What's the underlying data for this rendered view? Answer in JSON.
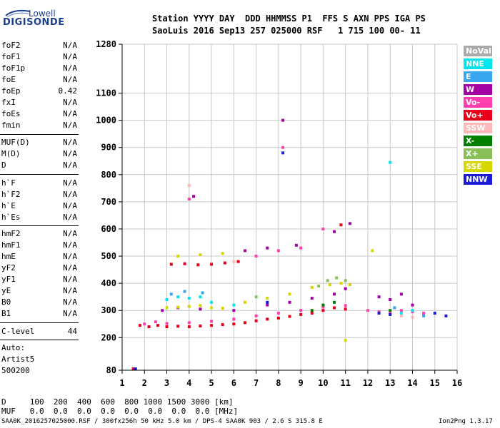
{
  "logo": {
    "top": "Lowell",
    "bottom": "DIGISONDE"
  },
  "header": {
    "line1": "Station YYYY DAY  DDD HHMMSS P1  FFS S AXN PPS IGA PS",
    "line2": "SaoLuis 2016 Sep13 257 025000 RSF   1 715 100 00- 11"
  },
  "params": [
    {
      "name": "foF2",
      "value": "N/A"
    },
    {
      "name": "foF1",
      "value": "N/A"
    },
    {
      "name": "foF1p",
      "value": "N/A"
    },
    {
      "name": "foE",
      "value": "N/A"
    },
    {
      "name": "foEp",
      "value": "0.42"
    },
    {
      "name": "fxI",
      "value": "N/A"
    },
    {
      "name": "foEs",
      "value": "N/A"
    },
    {
      "name": "fmin",
      "value": "N/A"
    },
    {
      "name": "MUF(D)",
      "value": "N/A"
    },
    {
      "name": "M(D)",
      "value": "N/A"
    },
    {
      "name": "D",
      "value": "N/A"
    },
    {
      "name": "h`F",
      "value": "N/A"
    },
    {
      "name": "h`F2",
      "value": "N/A"
    },
    {
      "name": "h`E",
      "value": "N/A"
    },
    {
      "name": "h`Es",
      "value": "N/A"
    },
    {
      "name": "hmF2",
      "value": "N/A"
    },
    {
      "name": "hmF1",
      "value": "N/A"
    },
    {
      "name": "hmE",
      "value": "N/A"
    },
    {
      "name": "yF2",
      "value": "N/A"
    },
    {
      "name": "yF1",
      "value": "N/A"
    },
    {
      "name": "yE",
      "value": "N/A"
    },
    {
      "name": "B0",
      "value": "N/A"
    },
    {
      "name": "B1",
      "value": "N/A"
    },
    {
      "name": "C-level",
      "value": "44"
    }
  ],
  "autoscaling": {
    "line1": "Auto:",
    "line2": "Artist5",
    "line3": "500200"
  },
  "legend": [
    {
      "label": "NoVal",
      "color": "#a9a9a9"
    },
    {
      "label": "NNE",
      "color": "#00e5ee"
    },
    {
      "label": "E",
      "color": "#39a6f2"
    },
    {
      "label": "W",
      "color": "#a500a5"
    },
    {
      "label": "Vo-",
      "color": "#ff3faf"
    },
    {
      "label": "Vo+",
      "color": "#e8001a"
    },
    {
      "label": "SSW",
      "color": "#ffb7b7"
    },
    {
      "label": "X-",
      "color": "#007f00"
    },
    {
      "label": "X+",
      "color": "#88c057"
    },
    {
      "label": "SSE",
      "color": "#d6d600"
    },
    {
      "label": "NNW",
      "color": "#1a1ad8"
    }
  ],
  "footer": {
    "d_row": "D     100  200  400  600  800 1000 1500 3000 [km]",
    "muf_row": "MUF   0.0  0.0  0.0  0.0  0.0  0.0  0.0  0.0 [MHz]",
    "file_info": "SAA0K_2016257025000.RSF / 300fx256h 50 kHz 5.0 km / DPS-4 SAA0K 903 / 2.6 S 315.8 E",
    "version": "Ion2Png 1.3.17"
  },
  "chart_data": {
    "type": "scatter",
    "title": "",
    "xlabel": "",
    "ylabel": "",
    "xlim": [
      1,
      16
    ],
    "ylim": [
      80,
      1280
    ],
    "x_ticks": [
      1,
      2,
      3,
      4,
      5,
      6,
      7,
      8,
      9,
      10,
      11,
      12,
      13,
      14,
      15,
      16
    ],
    "y_ticks": [
      80,
      200,
      300,
      400,
      500,
      600,
      700,
      800,
      900,
      1000,
      1100,
      1280
    ],
    "grid": true,
    "legend_position": "right",
    "series": [
      {
        "name": "Vo+",
        "color": "#e8001a",
        "points": [
          [
            1.5,
            85
          ],
          [
            1.8,
            245
          ],
          [
            2.2,
            240
          ],
          [
            2.6,
            245
          ],
          [
            3.0,
            240
          ],
          [
            3.5,
            242
          ],
          [
            4.0,
            240
          ],
          [
            4.5,
            243
          ],
          [
            5.0,
            245
          ],
          [
            5.5,
            248
          ],
          [
            6.0,
            250
          ],
          [
            6.5,
            255
          ],
          [
            7.0,
            262
          ],
          [
            7.5,
            268
          ],
          [
            8.0,
            272
          ],
          [
            8.5,
            278
          ],
          [
            9.0,
            285
          ],
          [
            9.5,
            290
          ],
          [
            10.0,
            300
          ],
          [
            10.5,
            310
          ],
          [
            11.0,
            305
          ],
          [
            3.2,
            470
          ],
          [
            3.8,
            472
          ],
          [
            4.4,
            468
          ],
          [
            5.0,
            470
          ],
          [
            5.6,
            475
          ],
          [
            6.2,
            480
          ],
          [
            10.8,
            615
          ]
        ]
      },
      {
        "name": "Vo-",
        "color": "#ff3faf",
        "points": [
          [
            2.0,
            250
          ],
          [
            2.5,
            258
          ],
          [
            3.0,
            252
          ],
          [
            4.0,
            255
          ],
          [
            5.0,
            260
          ],
          [
            6.0,
            268
          ],
          [
            7.0,
            280
          ],
          [
            8.0,
            290
          ],
          [
            9.0,
            300
          ],
          [
            10.0,
            312
          ],
          [
            11.0,
            318
          ],
          [
            12.0,
            300
          ],
          [
            12.5,
            295
          ],
          [
            13.0,
            290
          ],
          [
            13.5,
            300
          ],
          [
            14.0,
            295
          ],
          [
            14.5,
            290
          ],
          [
            7.0,
            500
          ],
          [
            8.0,
            520
          ],
          [
            9.0,
            530
          ],
          [
            4.0,
            710
          ],
          [
            8.2,
            900
          ],
          [
            10.0,
            600
          ]
        ]
      },
      {
        "name": "W",
        "color": "#a500a5",
        "points": [
          [
            2.8,
            300
          ],
          [
            3.5,
            310
          ],
          [
            4.5,
            305
          ],
          [
            6.0,
            300
          ],
          [
            7.5,
            320
          ],
          [
            8.5,
            330
          ],
          [
            9.5,
            345
          ],
          [
            10.5,
            360
          ],
          [
            11.0,
            380
          ],
          [
            12.5,
            350
          ],
          [
            13.0,
            340
          ],
          [
            13.5,
            360
          ],
          [
            14.0,
            320
          ],
          [
            4.2,
            720
          ],
          [
            6.5,
            520
          ],
          [
            7.5,
            530
          ],
          [
            8.8,
            540
          ],
          [
            10.5,
            590
          ],
          [
            11.2,
            620
          ],
          [
            8.2,
            1000
          ]
        ]
      },
      {
        "name": "SSE",
        "color": "#d6d600",
        "points": [
          [
            3.0,
            310
          ],
          [
            3.5,
            312
          ],
          [
            4.0,
            315
          ],
          [
            4.5,
            318
          ],
          [
            5.0,
            310
          ],
          [
            5.5,
            308
          ],
          [
            6.5,
            330
          ],
          [
            7.5,
            345
          ],
          [
            8.5,
            360
          ],
          [
            9.5,
            385
          ],
          [
            10.3,
            395
          ],
          [
            10.8,
            400
          ],
          [
            11.2,
            395
          ],
          [
            3.5,
            500
          ],
          [
            4.5,
            505
          ],
          [
            5.5,
            510
          ],
          [
            11.0,
            190
          ],
          [
            12.2,
            520
          ]
        ]
      },
      {
        "name": "NNE",
        "color": "#00e5ee",
        "points": [
          [
            3.0,
            340
          ],
          [
            3.5,
            350
          ],
          [
            4.0,
            345
          ],
          [
            4.5,
            350
          ],
          [
            5.0,
            330
          ],
          [
            6.0,
            320
          ],
          [
            13.0,
            845
          ],
          [
            13.5,
            290
          ],
          [
            14.0,
            300
          ]
        ]
      },
      {
        "name": "E",
        "color": "#39a6f2",
        "points": [
          [
            3.2,
            360
          ],
          [
            3.8,
            370
          ],
          [
            4.6,
            365
          ],
          [
            13.2,
            310
          ],
          [
            14.5,
            280
          ]
        ]
      },
      {
        "name": "X+",
        "color": "#88c057",
        "points": [
          [
            9.8,
            390
          ],
          [
            10.2,
            410
          ],
          [
            10.6,
            420
          ],
          [
            11.0,
            410
          ],
          [
            7.0,
            350
          ]
        ]
      },
      {
        "name": "X-",
        "color": "#007f00",
        "points": [
          [
            9.5,
            300
          ],
          [
            10.0,
            320
          ],
          [
            10.5,
            330
          ],
          [
            13.0,
            300
          ]
        ]
      },
      {
        "name": "SSW",
        "color": "#ffb7b7",
        "points": [
          [
            4.0,
            760
          ],
          [
            13.5,
            280
          ],
          [
            14.0,
            275
          ],
          [
            6.0,
            480
          ]
        ]
      },
      {
        "name": "NNW",
        "color": "#1a1ad8",
        "points": [
          [
            1.6,
            85
          ],
          [
            7.5,
            330
          ],
          [
            8.2,
            880
          ],
          [
            12.5,
            290
          ],
          [
            13.0,
            285
          ],
          [
            15.0,
            290
          ],
          [
            15.5,
            280
          ]
        ]
      }
    ]
  }
}
